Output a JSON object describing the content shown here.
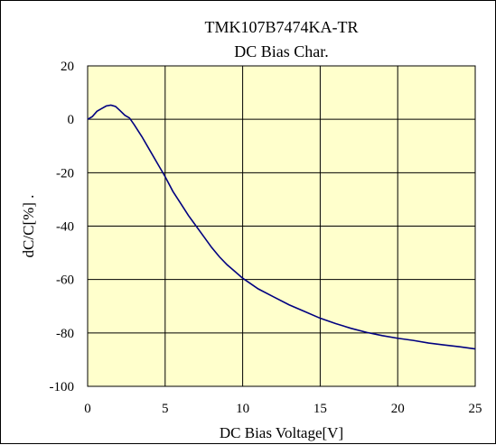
{
  "chart_data": {
    "type": "line",
    "title": "TMK107B7474KA-TR",
    "subtitle": "DC Bias Char.",
    "xlabel": "DC Bias Voltage[V]",
    "ylabel": "dC/C[%] .",
    "xlim": [
      0,
      25
    ],
    "ylim": [
      -100,
      20
    ],
    "x_ticks": [
      0,
      5,
      10,
      15,
      20,
      25
    ],
    "y_ticks": [
      20,
      0,
      -20,
      -40,
      -60,
      -80,
      -100
    ],
    "x_tick_labels": [
      "0",
      "5",
      "10",
      "15",
      "20",
      "25"
    ],
    "y_tick_labels": [
      "20",
      "0",
      "-20",
      "-40",
      "-60",
      "-80",
      "-100"
    ],
    "grid": true,
    "plot_background": "#ffffcc",
    "line_color": "#000080",
    "series": [
      {
        "name": "",
        "x": [
          0,
          0.3,
          0.6,
          0.9,
          1.2,
          1.5,
          1.8,
          2.1,
          2.4,
          2.7,
          3.0,
          3.5,
          4.0,
          4.5,
          5.0,
          5.5,
          6.0,
          6.5,
          7.0,
          7.5,
          8.0,
          8.5,
          9.0,
          9.5,
          10.0,
          11.0,
          12.0,
          13.0,
          14.0,
          15.0,
          16.0,
          17.0,
          18.0,
          19.0,
          20.0,
          21.0,
          22.0,
          23.0,
          24.0,
          25.0
        ],
        "values": [
          0,
          1,
          3,
          4,
          5,
          5.3,
          4.8,
          3.2,
          1.5,
          0.5,
          -2,
          -6.5,
          -11.5,
          -16.5,
          -21.5,
          -27,
          -31.5,
          -36,
          -40,
          -44,
          -48,
          -51.5,
          -54.5,
          -57,
          -59.5,
          -63.5,
          -66.5,
          -69.5,
          -72,
          -74.5,
          -76.5,
          -78.3,
          -79.8,
          -81,
          -82,
          -82.8,
          -83.8,
          -84.5,
          -85.2,
          -86
        ]
      }
    ]
  }
}
